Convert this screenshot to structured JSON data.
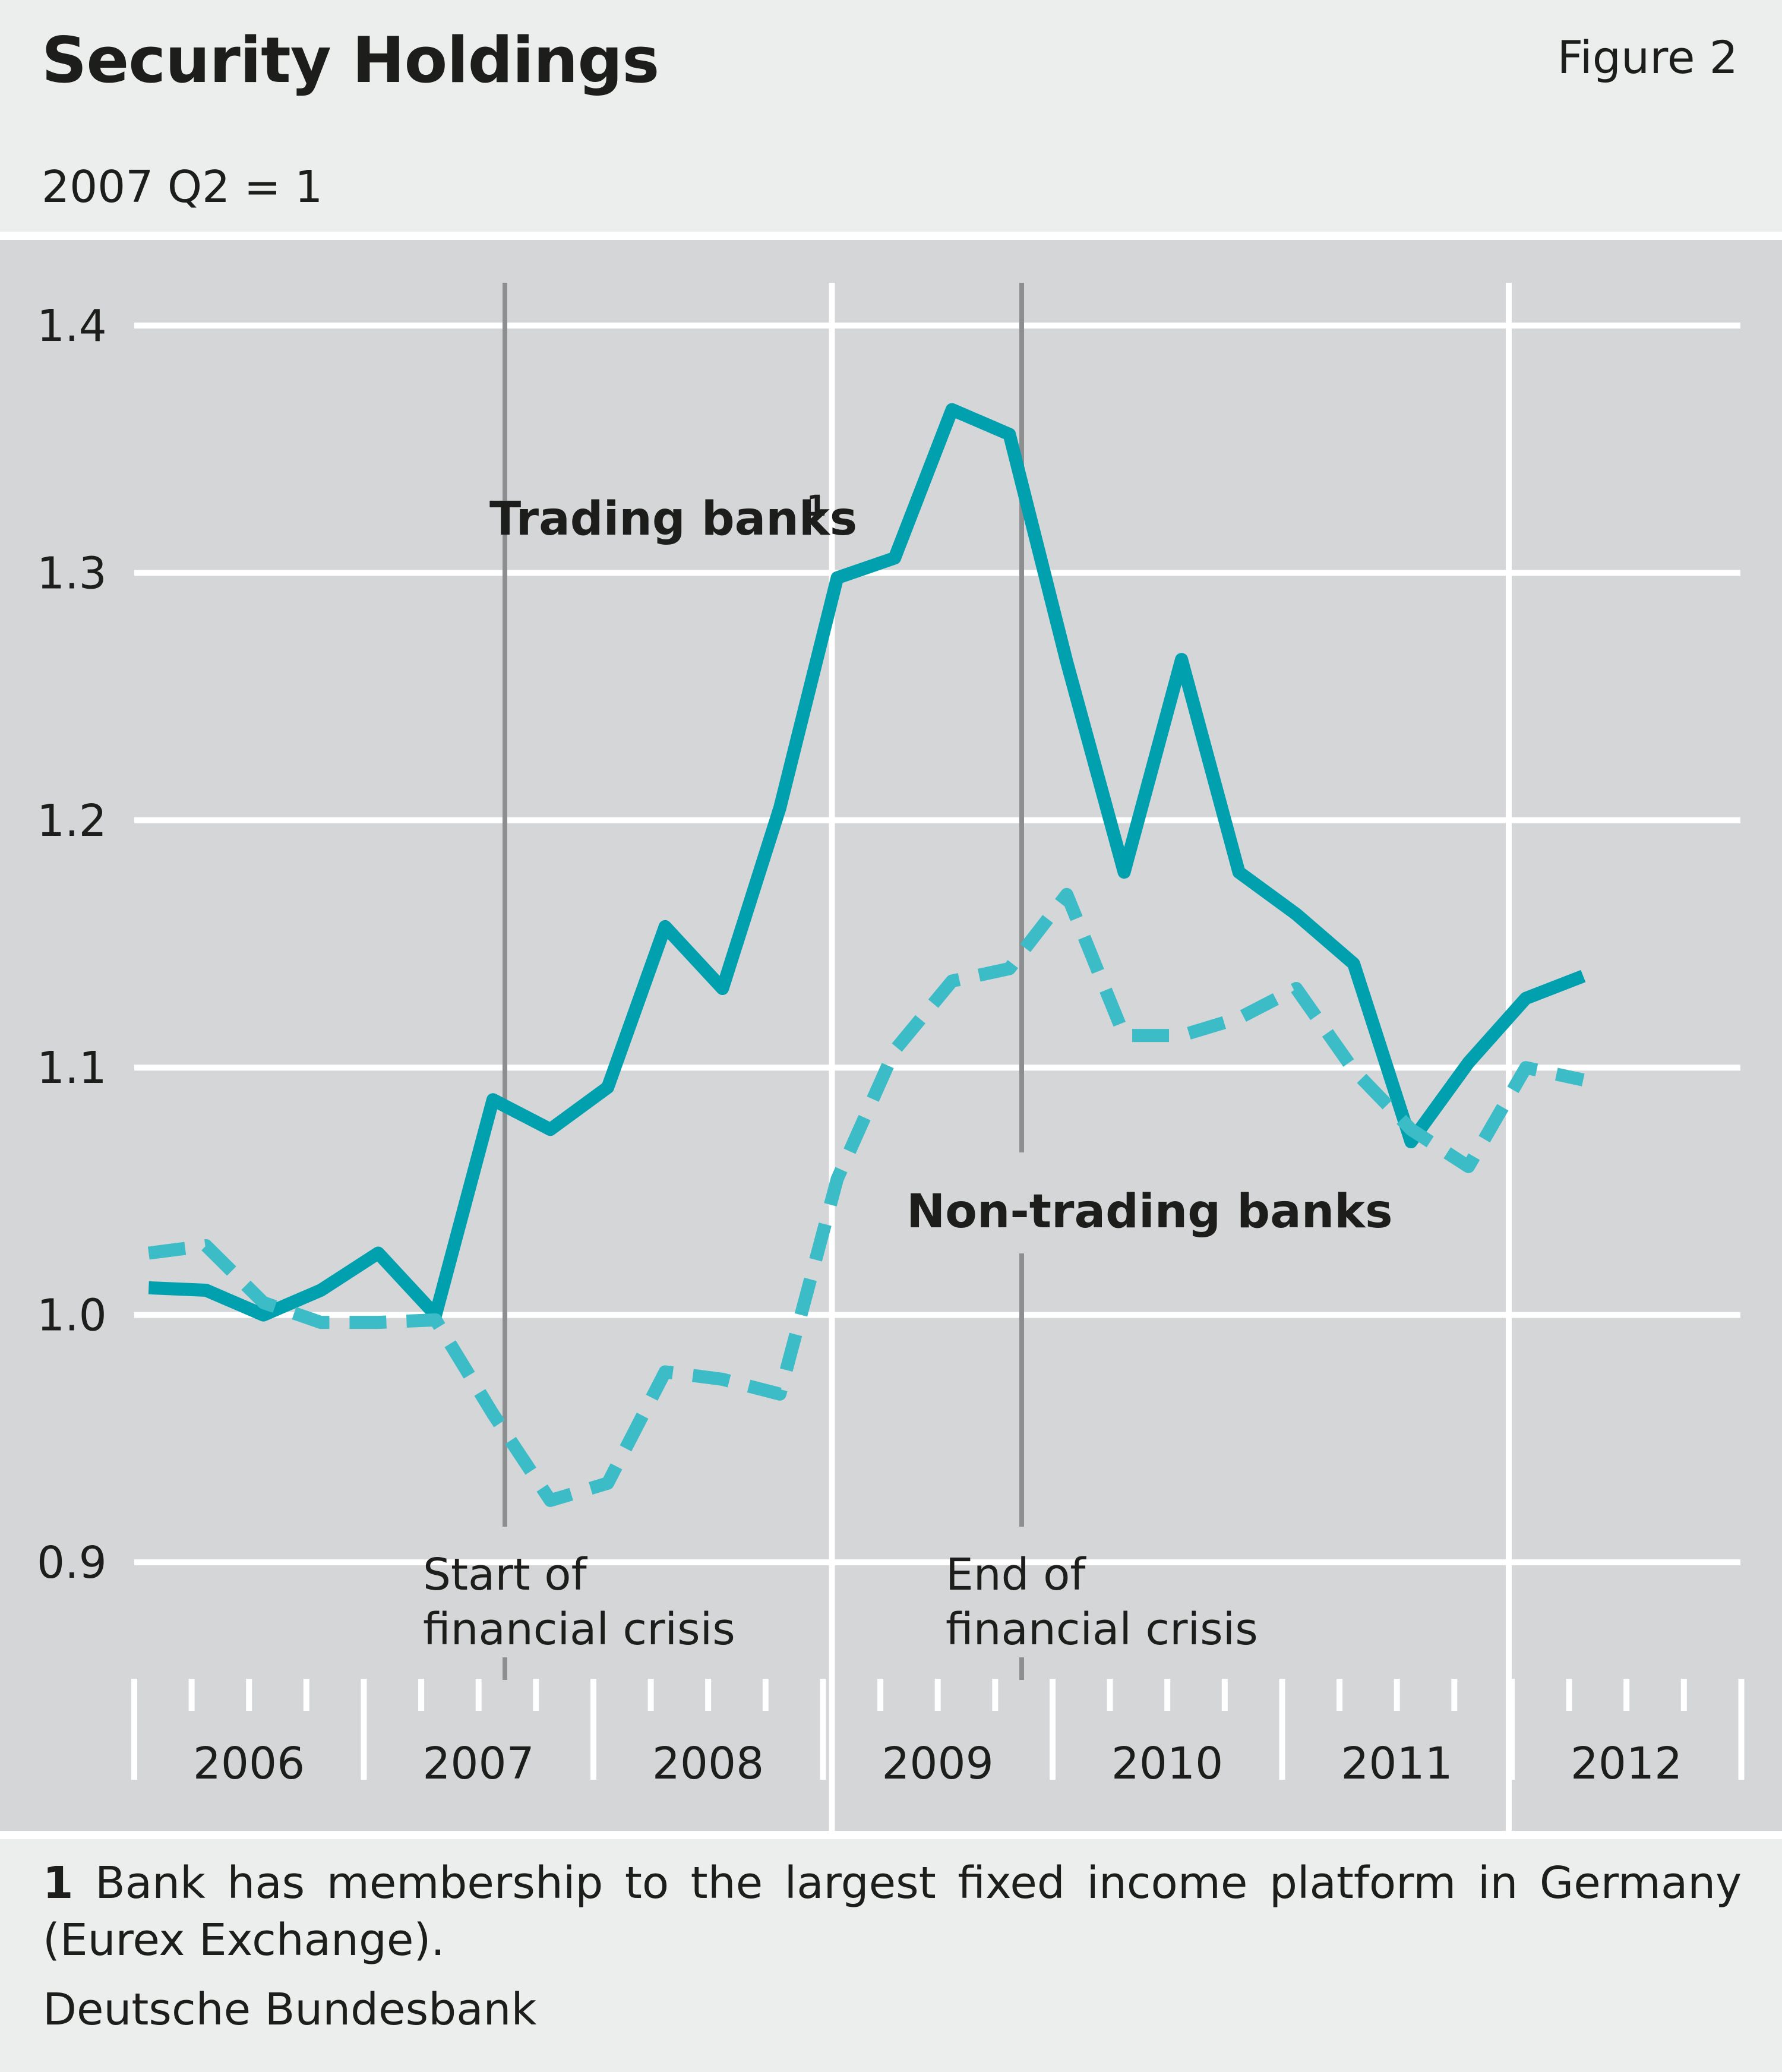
{
  "header": {
    "title": "Security Holdings",
    "figure_label": "Figure 2",
    "subtitle": "2007 Q2 = 1"
  },
  "footer": {
    "footnote_number": "1",
    "footnote_text": "Bank has membership to the largest fixed income platform in Germany (Eurex Exchange).",
    "source": "Deutsche Bundesbank"
  },
  "colors": {
    "trading": "#00a0ae",
    "non_trading": "#3bbcc7",
    "plot_background": "#d5d6d8",
    "grid": "#ffffff",
    "marker_line": "#8d8e90",
    "page_background": "#eceeed"
  },
  "chart_data": {
    "type": "line",
    "title": "Security Holdings",
    "subtitle": "2007 Q2 = 1",
    "xlabel": "",
    "ylabel": "",
    "x": [
      "2006 Q1",
      "2006 Q2",
      "2006 Q3",
      "2006 Q4",
      "2007 Q1",
      "2007 Q2",
      "2007 Q3",
      "2007 Q4",
      "2008 Q1",
      "2008 Q2",
      "2008 Q3",
      "2008 Q4",
      "2009 Q1",
      "2009 Q2",
      "2009 Q3",
      "2009 Q4",
      "2010 Q1",
      "2010 Q2",
      "2010 Q3",
      "2010 Q4",
      "2011 Q1",
      "2011 Q2",
      "2011 Q3",
      "2011 Q4",
      "2012 Q1",
      "2012 Q2",
      "2012 Q3"
    ],
    "year_labels": [
      "2006",
      "2007",
      "2008",
      "2009",
      "2010",
      "2011",
      "2012"
    ],
    "ylim": [
      0.9,
      1.4
    ],
    "yticks": [
      "0.9",
      "1.0",
      "1.1",
      "1.2",
      "1.3",
      "1.4"
    ],
    "grid": true,
    "series": [
      {
        "name": "Trading banks",
        "label": "Trading banks",
        "footnote_marker": "1",
        "style": "solid",
        "values": [
          1.011,
          1.01,
          1.0,
          1.01,
          1.025,
          1.0,
          1.087,
          1.075,
          1.092,
          1.157,
          1.132,
          1.205,
          1.298,
          1.306,
          1.366,
          1.356,
          1.264,
          1.179,
          1.265,
          1.179,
          1.162,
          1.142,
          1.07,
          1.102,
          1.128,
          1.137,
          null
        ]
      },
      {
        "name": "Non-trading banks",
        "label": "Non-trading banks",
        "style": "dashed",
        "values": [
          1.025,
          1.028,
          1.005,
          0.997,
          0.997,
          0.998,
          0.96,
          0.925,
          0.932,
          0.977,
          0.974,
          0.968,
          1.055,
          1.107,
          1.135,
          1.14,
          1.17,
          1.113,
          1.113,
          1.12,
          1.132,
          1.099,
          1.075,
          1.06,
          1.1,
          1.095,
          null
        ]
      }
    ],
    "markers": [
      {
        "position": "2007 Q2",
        "label_line1": "Start of",
        "label_line2": "financial crisis"
      },
      {
        "position": "2009 Q3",
        "label_line1": "End of",
        "label_line2": "financial crisis"
      }
    ],
    "legend_placement": "inline"
  }
}
